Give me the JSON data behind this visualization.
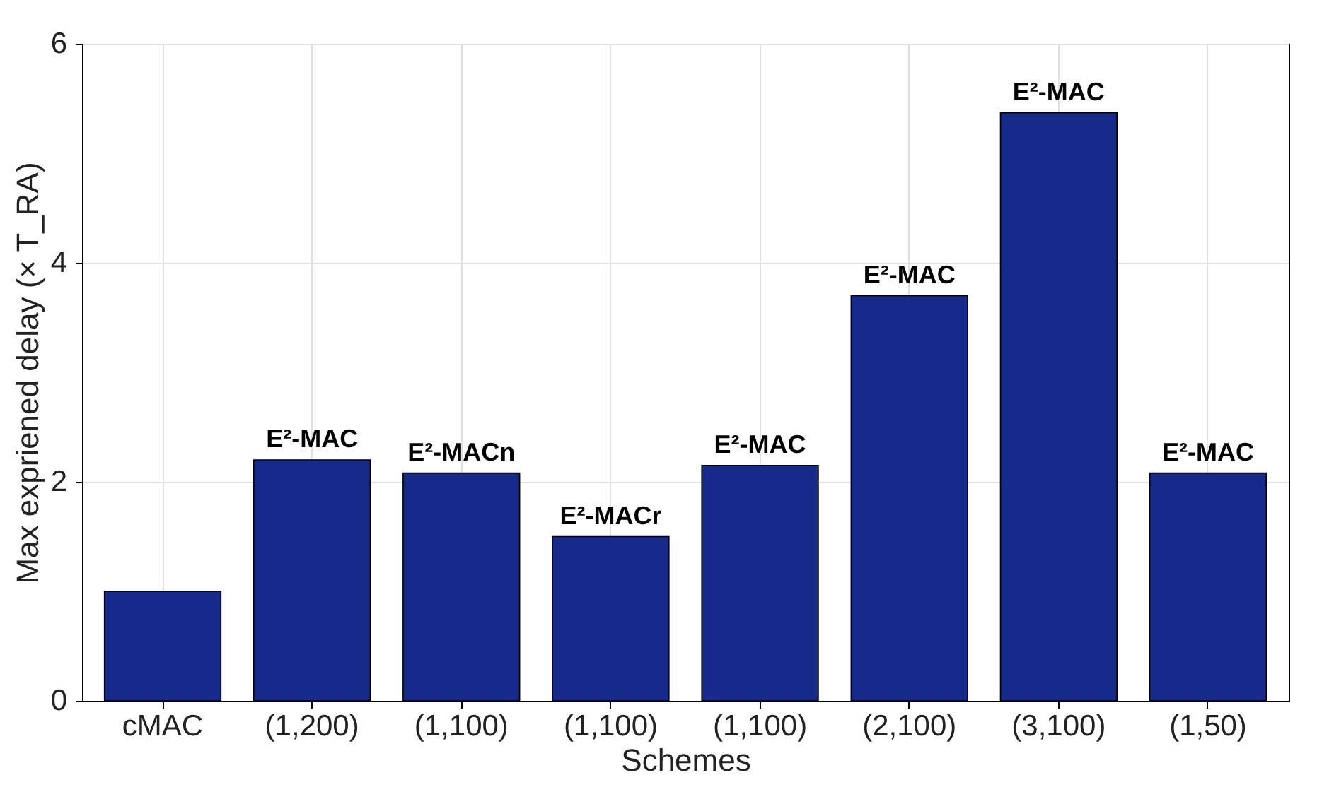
{
  "chart_data": {
    "type": "bar",
    "xlabel": "Schemes",
    "ylabel": "Max expriened delay (× T_RA)",
    "categories": [
      "cMAC",
      "(1,200)",
      "(1,100)",
      "(1,100)",
      "(1,100)",
      "(2,100)",
      "(3,100)",
      "(1,50)"
    ],
    "values": [
      1.0,
      2.2,
      2.08,
      1.5,
      2.15,
      3.7,
      5.37,
      2.08
    ],
    "value_labels": [
      null,
      "E²-MAC",
      "E²-MACn",
      "E²-MACr",
      "E²-MAC",
      "E²-MAC",
      "E²-MAC",
      "E²-MAC"
    ],
    "color": "#152a8a",
    "ylim": [
      0,
      6
    ],
    "yticks": [
      0,
      2,
      4,
      6
    ],
    "grid": true
  }
}
